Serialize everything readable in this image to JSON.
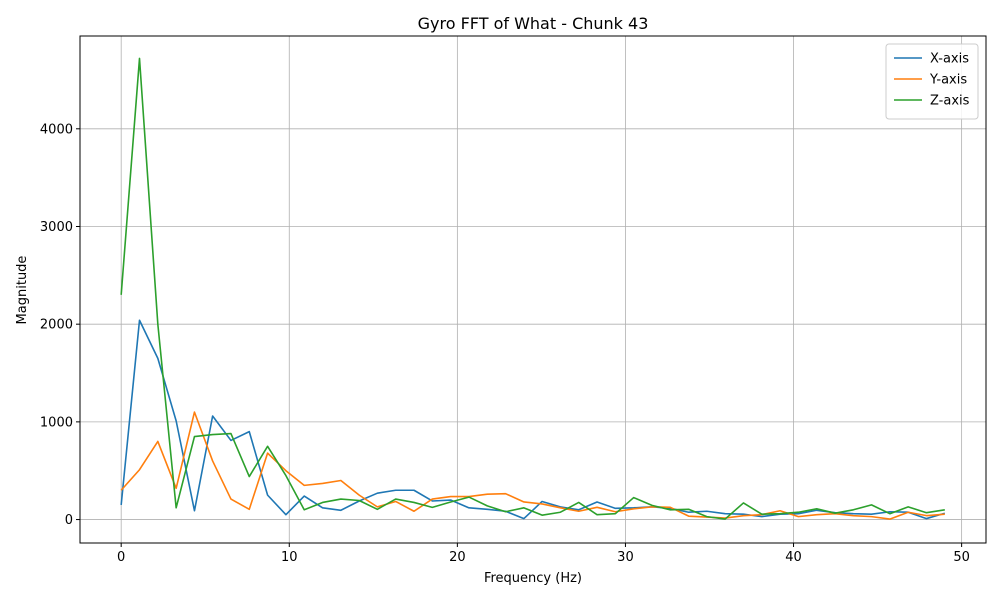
{
  "chart_data": {
    "type": "line",
    "title": "Gyro FFT of What - Chunk 43",
    "xlabel": "Frequency (Hz)",
    "ylabel": "Magnitude",
    "xlim": [
      -2.45,
      51.45
    ],
    "ylim": [
      -240,
      4950
    ],
    "xticks": [
      0,
      10,
      20,
      30,
      40,
      50
    ],
    "yticks": [
      0,
      1000,
      2000,
      3000,
      4000
    ],
    "grid": true,
    "legend_position": "top-right",
    "x": [
      0,
      1.09,
      2.18,
      3.27,
      4.36,
      5.44,
      6.53,
      7.62,
      8.71,
      9.8,
      10.89,
      11.98,
      13.07,
      14.16,
      15.24,
      16.33,
      17.42,
      18.51,
      19.6,
      20.69,
      21.78,
      22.87,
      23.96,
      25.04,
      26.13,
      27.22,
      28.31,
      29.4,
      30.49,
      31.58,
      32.67,
      33.76,
      34.84,
      35.93,
      37.02,
      38.11,
      39.2,
      40.29,
      41.38,
      42.47,
      43.56,
      44.64,
      45.73,
      46.82,
      47.91,
      49.0
    ],
    "series": [
      {
        "name": "X-axis",
        "color": "#1f77b4",
        "values": [
          150,
          2040,
          1650,
          1010,
          90,
          1060,
          810,
          900,
          250,
          50,
          240,
          120,
          95,
          190,
          270,
          300,
          300,
          190,
          200,
          120,
          105,
          85,
          10,
          185,
          130,
          100,
          180,
          115,
          120,
          130,
          115,
          75,
          85,
          60,
          55,
          30,
          55,
          60,
          95,
          70,
          60,
          55,
          80,
          75,
          10,
          65
        ]
      },
      {
        "name": "Y-axis",
        "color": "#ff7f0e",
        "values": [
          300,
          510,
          800,
          320,
          1100,
          600,
          210,
          105,
          680,
          500,
          350,
          370,
          400,
          250,
          130,
          185,
          85,
          210,
          235,
          235,
          260,
          265,
          180,
          160,
          120,
          85,
          125,
          80,
          110,
          130,
          125,
          35,
          25,
          15,
          40,
          50,
          90,
          30,
          50,
          60,
          40,
          30,
          5,
          75,
          40,
          55
        ]
      },
      {
        "name": "Z-axis",
        "color": "#2ca02c",
        "values": [
          2300,
          4720,
          2000,
          120,
          850,
          870,
          880,
          440,
          750,
          450,
          100,
          175,
          210,
          195,
          105,
          210,
          175,
          125,
          180,
          230,
          140,
          80,
          120,
          45,
          75,
          175,
          50,
          60,
          225,
          145,
          100,
          105,
          30,
          5,
          170,
          55,
          60,
          75,
          110,
          65,
          100,
          150,
          60,
          130,
          70,
          100
        ]
      }
    ]
  }
}
